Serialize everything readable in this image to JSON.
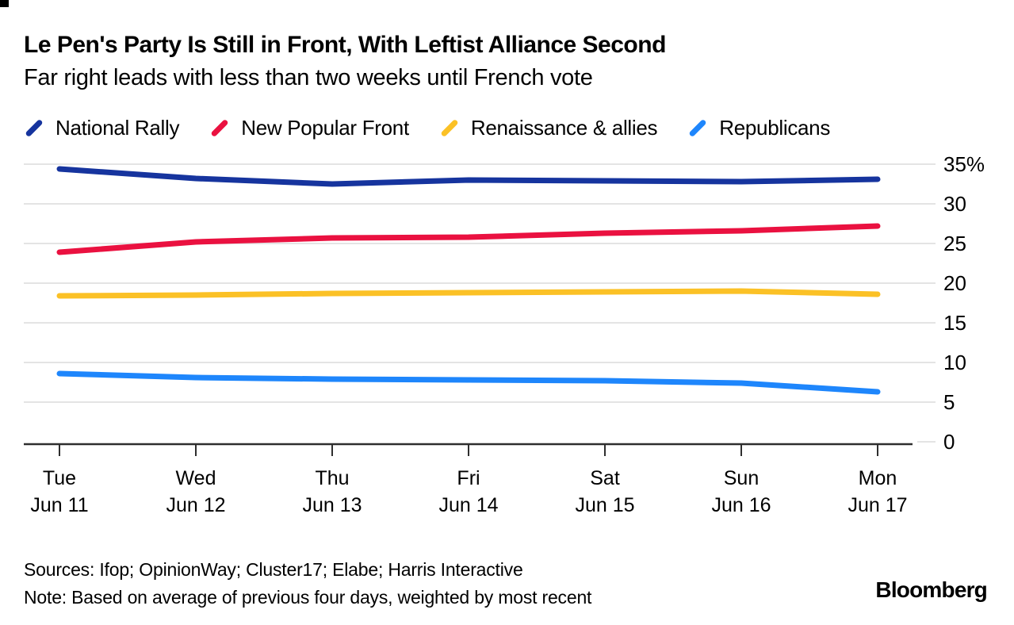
{
  "header": {
    "title": "Le Pen's Party Is Still in Front, With Leftist Alliance Second",
    "subtitle": "Far right leads with less than two weeks until French vote"
  },
  "legend": {
    "items": [
      {
        "label": "National Rally",
        "color": "#16349e"
      },
      {
        "label": "New Popular Front",
        "color": "#ea1140"
      },
      {
        "label": "Renaissance & allies",
        "color": "#fbc126"
      },
      {
        "label": "Republicans",
        "color": "#1e86fc"
      }
    ]
  },
  "chart_data": {
    "type": "line",
    "title": "Le Pen's Party Is Still in Front, With Leftist Alliance Second",
    "subtitle": "Far right leads with less than two weeks until French vote",
    "unit": "%",
    "x": [
      {
        "day": "Tue",
        "date": "Jun 11"
      },
      {
        "day": "Wed",
        "date": "Jun 12"
      },
      {
        "day": "Thu",
        "date": "Jun 13"
      },
      {
        "day": "Fri",
        "date": "Jun 14"
      },
      {
        "day": "Sat",
        "date": "Jun 15"
      },
      {
        "day": "Sun",
        "date": "Jun 16"
      },
      {
        "day": "Mon",
        "date": "Jun 17"
      }
    ],
    "series": [
      {
        "name": "National Rally",
        "color": "#16349e",
        "values": [
          34.4,
          33.2,
          32.5,
          33.0,
          32.9,
          32.8,
          33.1
        ]
      },
      {
        "name": "New Popular Front",
        "color": "#ea1140",
        "values": [
          23.9,
          25.2,
          25.7,
          25.8,
          26.3,
          26.6,
          27.2
        ]
      },
      {
        "name": "Renaissance & allies",
        "color": "#fbc126",
        "values": [
          18.4,
          18.5,
          18.7,
          18.8,
          18.9,
          19.0,
          18.6
        ]
      },
      {
        "name": "Republicans",
        "color": "#1e86fc",
        "values": [
          8.6,
          8.1,
          7.9,
          7.8,
          7.7,
          7.4,
          6.3
        ]
      }
    ],
    "ylim": [
      0,
      35
    ],
    "y_ticks": [
      0,
      5,
      10,
      15,
      20,
      25,
      30,
      35
    ],
    "y_tick_labels": [
      "0",
      "5",
      "10",
      "15",
      "20",
      "25",
      "30",
      "35%"
    ],
    "y_axis_position": "right",
    "grid": "horizontal",
    "legend_position": "top",
    "grid_color": "#e4e4e4",
    "axis_color": "#2e2e2e"
  },
  "footer": {
    "sources": "Sources: Ifop; OpinionWay; Cluster17; Elabe; Harris Interactive",
    "note": "Note: Based on average of previous four days, weighted by most recent",
    "brand": "Bloomberg"
  }
}
